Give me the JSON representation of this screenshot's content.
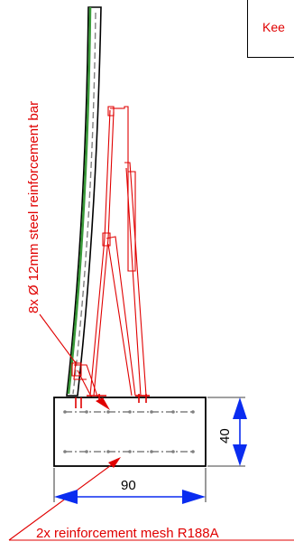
{
  "note": {
    "text": "Kee"
  },
  "labels": {
    "steel_bar": "8x Ø 12mm steel reinforcement bar",
    "mesh": "2x reinforcement mesh R188A",
    "dim_height": "40",
    "dim_width": "90"
  },
  "colors": {
    "annotation": "#e00000",
    "dimension": "#0a2cf0",
    "panel_fill": "#3a9a3a",
    "outline": "#000000",
    "rebar": "#808080"
  }
}
